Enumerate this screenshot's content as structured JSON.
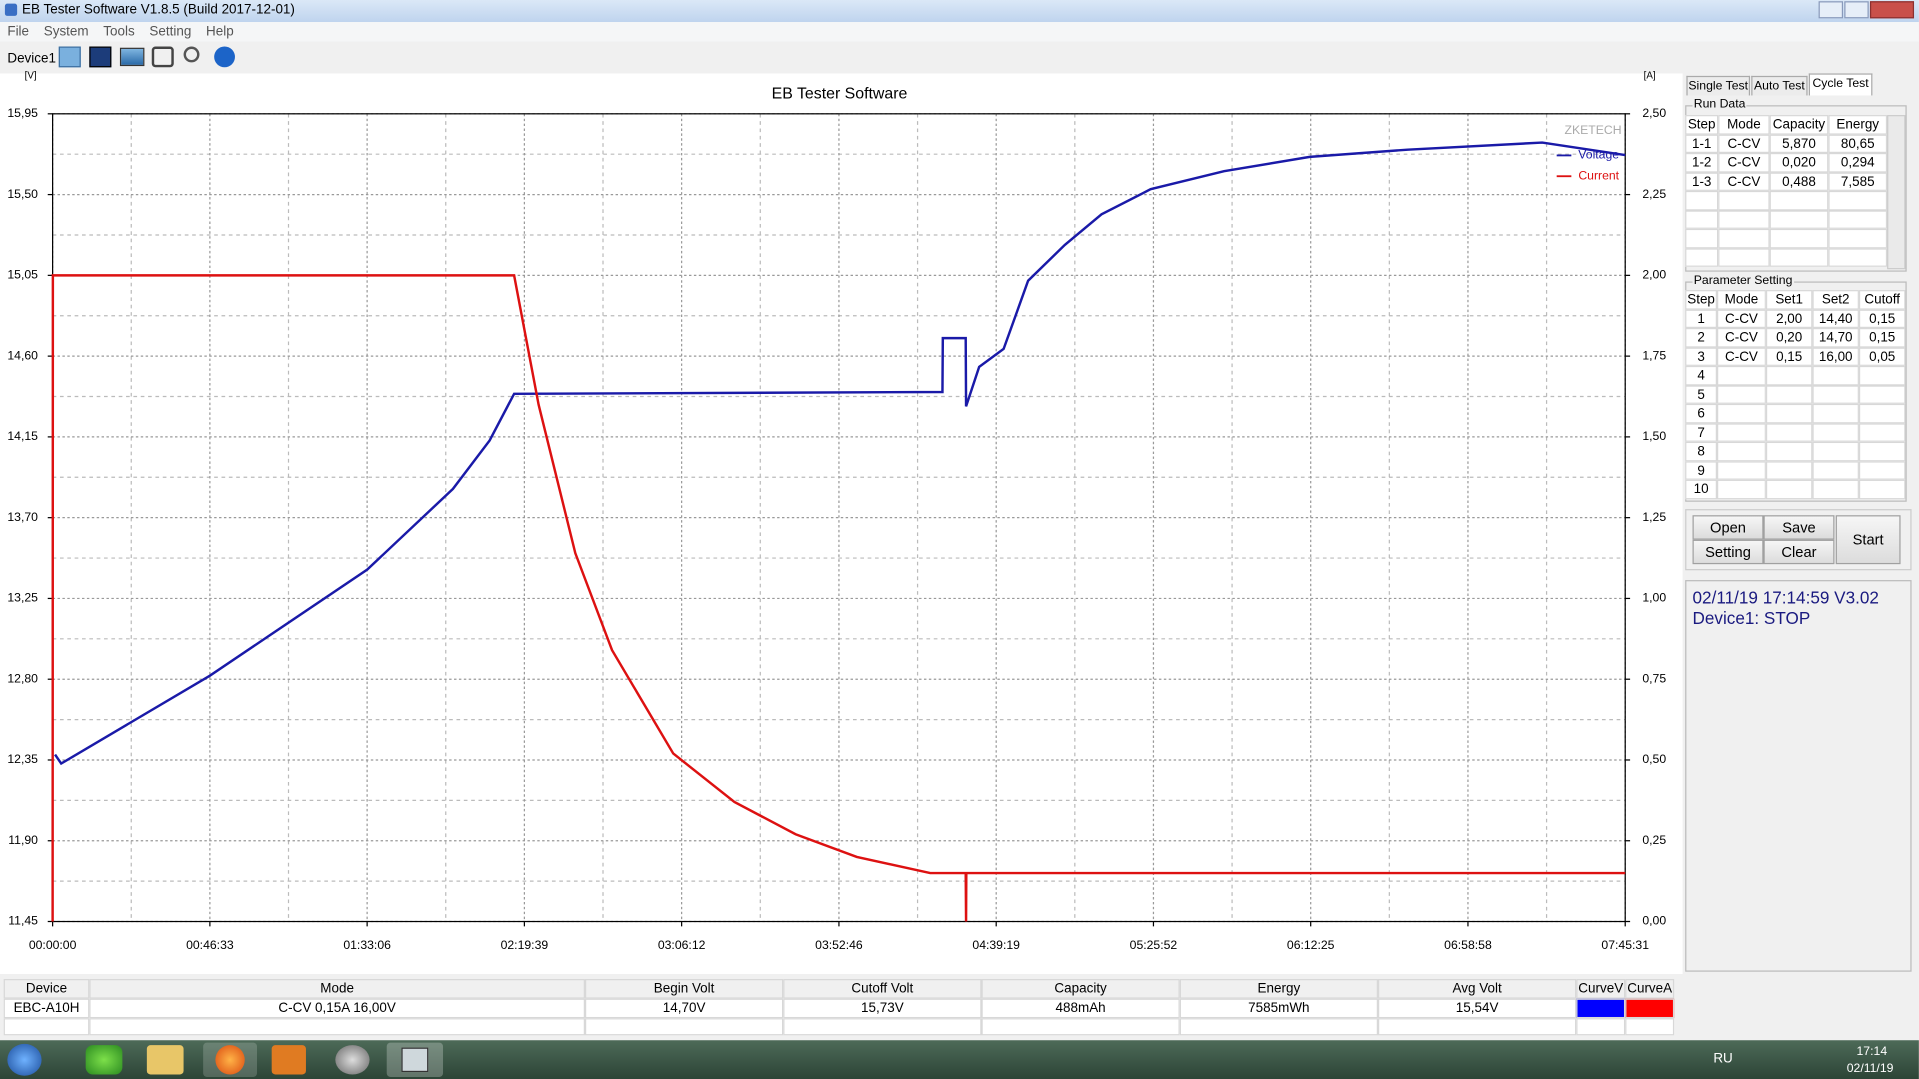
{
  "window": {
    "title": "EB Tester Software V1.8.5 (Build 2017-12-01)"
  },
  "menu": [
    "File",
    "System",
    "Tools",
    "Setting",
    "Help"
  ],
  "toolbar": {
    "device": "Device1"
  },
  "chart_data": {
    "type": "line",
    "title": "EB Tester Software",
    "watermark": "ZKETECH",
    "ylabel": "[V]",
    "y2label": "[A]",
    "xlim": [
      "00:00:00",
      "07:45:31"
    ],
    "xticks": [
      "00:00:00",
      "00:46:33",
      "01:33:06",
      "02:19:39",
      "03:06:12",
      "03:52:46",
      "04:39:19",
      "05:25:52",
      "06:12:25",
      "06:58:58",
      "07:45:31"
    ],
    "ylim": [
      11.45,
      15.95
    ],
    "yticks": [
      {
        "value": 11.45,
        "label": "11,45"
      },
      {
        "value": 11.9,
        "label": "11,90"
      },
      {
        "value": 12.35,
        "label": "12,35"
      },
      {
        "value": 12.8,
        "label": "12,80"
      },
      {
        "value": 13.25,
        "label": "13,25"
      },
      {
        "value": 13.7,
        "label": "13,70"
      },
      {
        "value": 14.15,
        "label": "14,15"
      },
      {
        "value": 14.6,
        "label": "14,60"
      },
      {
        "value": 15.05,
        "label": "15,05"
      },
      {
        "value": 15.5,
        "label": "15,50"
      },
      {
        "value": 15.95,
        "label": "15,95"
      }
    ],
    "y2lim": [
      0,
      2.5
    ],
    "y2ticks": [
      {
        "value": 0,
        "label": "0,00"
      },
      {
        "value": 0.25,
        "label": "0,25"
      },
      {
        "value": 0.5,
        "label": "0,50"
      },
      {
        "value": 0.75,
        "label": "0,75"
      },
      {
        "value": 1,
        "label": "1,00"
      },
      {
        "value": 1.25,
        "label": "1,25"
      },
      {
        "value": 1.5,
        "label": "1,50"
      },
      {
        "value": 1.75,
        "label": "1,75"
      },
      {
        "value": 2,
        "label": "2,00"
      },
      {
        "value": 2.25,
        "label": "2,25"
      },
      {
        "value": 2.5,
        "label": "2,50"
      }
    ],
    "grid": true,
    "legend": "top-right",
    "series": [
      {
        "name": "Voltage",
        "color": "#1a1aa8",
        "x": [
          "00:00:43",
          "00:02:32",
          "00:46:33",
          "01:33:06",
          "01:58:29",
          "02:09:21",
          "02:16:36",
          "04:23:25",
          "04:23:30",
          "04:30:18",
          "04:30:23",
          "04:34:17",
          "04:41:32",
          "04:48:47",
          "04:59:39",
          "05:10:31",
          "05:25:01",
          "05:46:45",
          "06:12:07",
          "06:41:06",
          "07:20:58",
          "07:45:31"
        ],
        "values": [
          12.38,
          12.33,
          12.82,
          13.41,
          13.86,
          14.13,
          14.39,
          14.4,
          14.7,
          14.7,
          14.32,
          14.54,
          14.64,
          15.02,
          15.22,
          15.39,
          15.53,
          15.63,
          15.71,
          15.75,
          15.79,
          15.72
        ]
      },
      {
        "name": "Current",
        "color": "#dd1111",
        "axis": "y2",
        "x": [
          "00:00:00",
          "00:00:05",
          "02:16:36",
          "02:23:51",
          "02:34:43",
          "02:45:35",
          "03:03:42",
          "03:21:49",
          "03:39:56",
          "03:58:03",
          "04:19:48",
          "04:30:18",
          "04:30:23",
          "04:30:28",
          "07:45:31"
        ],
        "values": [
          0,
          2.0,
          2.0,
          1.6,
          1.14,
          0.84,
          0.52,
          0.37,
          0.27,
          0.2,
          0.15,
          0.15,
          0,
          0.15,
          0.15
        ]
      }
    ]
  },
  "tabs": [
    "Single Test",
    "Auto Test",
    "Cycle Test"
  ],
  "run_data": {
    "title": "Run Data",
    "columns": [
      "Step",
      "Mode",
      "Capacity",
      "Energy"
    ],
    "rows": [
      [
        "1-1",
        "C-CV",
        "5,870",
        "80,65"
      ],
      [
        "1-2",
        "C-CV",
        "0,020",
        "0,294"
      ],
      [
        "1-3",
        "C-CV",
        "0,488",
        "7,585"
      ]
    ]
  },
  "parameter_setting": {
    "title": "Parameter Setting",
    "columns": [
      "Step",
      "Mode",
      "Set1",
      "Set2",
      "Cutoff"
    ],
    "rows": [
      [
        "1",
        "C-CV",
        "2,00",
        "14,40",
        "0,15"
      ],
      [
        "2",
        "C-CV",
        "0,20",
        "14,70",
        "0,15"
      ],
      [
        "3",
        "C-CV",
        "0,15",
        "16,00",
        "0,05"
      ],
      [
        "4"
      ],
      [
        "5"
      ],
      [
        "6"
      ],
      [
        "7"
      ],
      [
        "8"
      ],
      [
        "9"
      ],
      [
        "10"
      ]
    ]
  },
  "buttons": [
    "Open",
    "Save",
    "Setting",
    "Clear",
    "Start"
  ],
  "status": [
    "02/11/19 17:14:59  V3.02",
    "Device1: STOP"
  ],
  "bottom_table": {
    "columns": [
      "Device",
      "Mode",
      "Begin Volt",
      "Cutoff Volt",
      "Capacity",
      "Energy",
      "Avg Volt",
      "CurveV",
      "CurveA"
    ],
    "row": [
      "EBC-A10H",
      "C-CV  0,15A  16,00V",
      "14,70V",
      "15,73V",
      "488mAh",
      "7585mWh",
      "15,54V"
    ],
    "curve_colors": [
      "#0000ff",
      "#ff0000"
    ]
  },
  "taskbar": {
    "language": "RU",
    "time": "17:14",
    "date": "02/11/19"
  }
}
